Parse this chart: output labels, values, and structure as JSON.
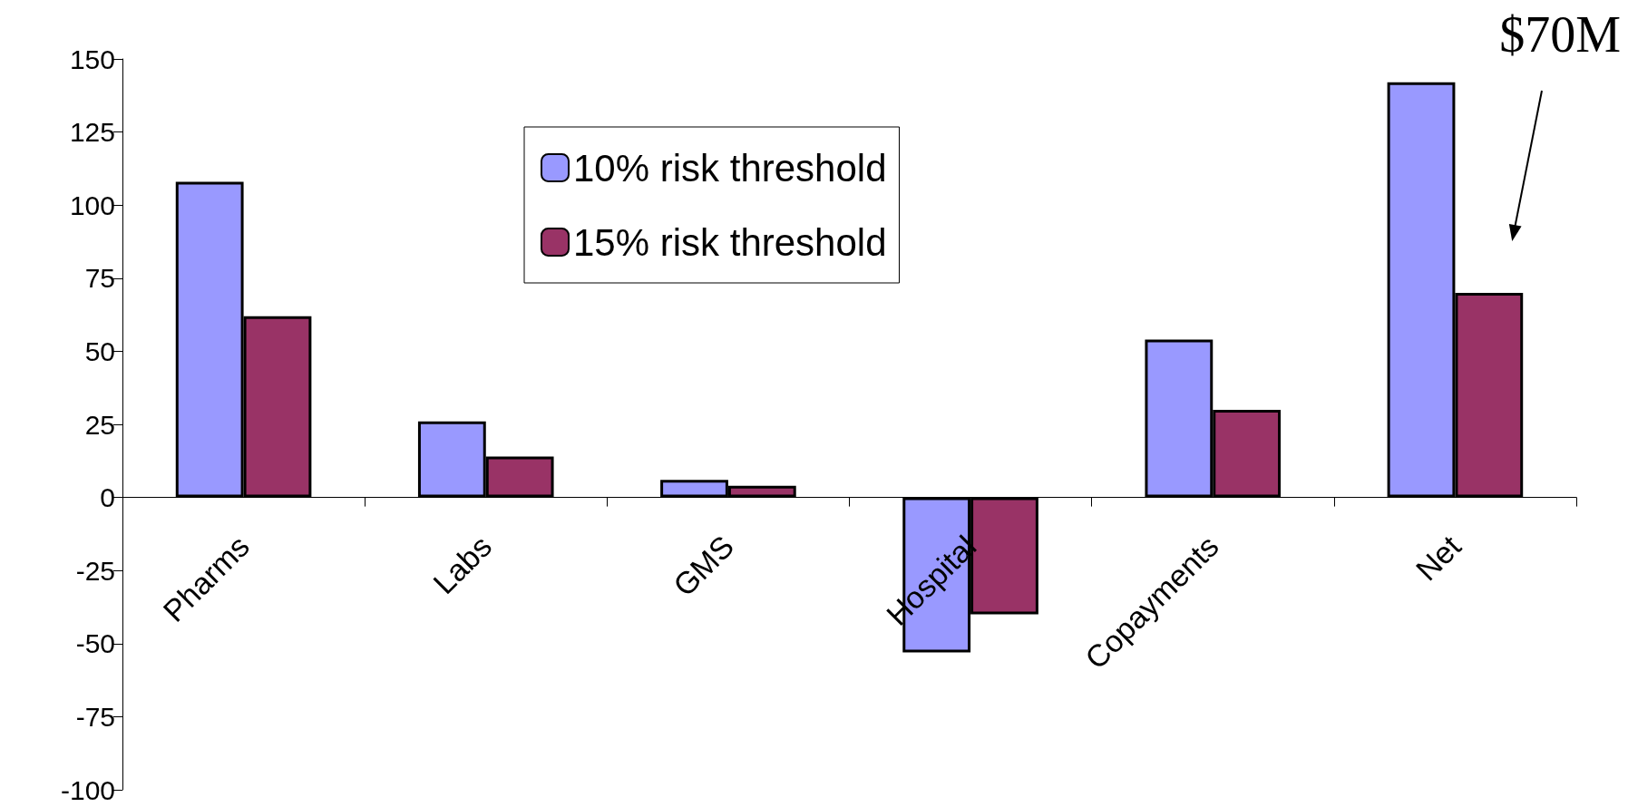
{
  "chart_data": {
    "type": "bar",
    "categories": [
      "Pharms",
      "Labs",
      "GMS",
      "Hospital",
      "Copayments",
      "Net"
    ],
    "series": [
      {
        "name": "10% risk threshold",
        "color": "#9999ff",
        "values": [
          108,
          26,
          6,
          -53,
          54,
          142
        ]
      },
      {
        "name": "15% risk threshold",
        "color": "#993366",
        "values": [
          62,
          14,
          4,
          -40,
          30,
          70
        ]
      }
    ],
    "ylim": [
      -100,
      150
    ],
    "yticks": [
      -100,
      -75,
      -50,
      -25,
      0,
      25,
      50,
      75,
      100,
      125,
      150
    ],
    "grid": false,
    "legend": "top",
    "annotations": [
      "$70M"
    ]
  }
}
